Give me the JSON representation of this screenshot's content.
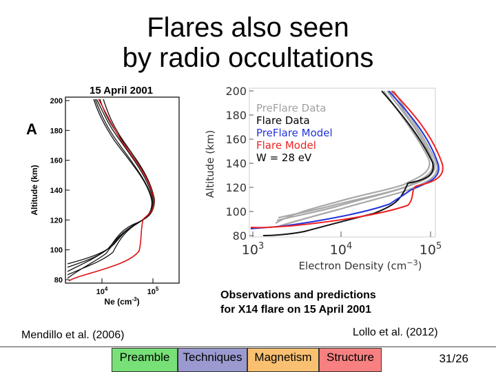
{
  "title": {
    "line1": "Flares also seen",
    "line2": "by radio occultations"
  },
  "figure_left": {
    "date_label": "15 April 2001",
    "panel_letter": "A",
    "ylabel": "Altitude (km)",
    "xlabel": "Ne (cm",
    "xlabel_sup": "-3",
    "xlabel_close": ")",
    "yticks": [
      "200",
      "180",
      "160",
      "140",
      "120",
      "100",
      "80"
    ],
    "xticks": [
      {
        "base": "10",
        "exp": "4"
      },
      {
        "base": "10",
        "exp": "5"
      }
    ]
  },
  "figure_right": {
    "ylabel": "Altitude (km)",
    "xlabel": "Electron Density (cm",
    "xlabel_sup": "−3",
    "xlabel_close": ")",
    "yticks": [
      "200",
      "180",
      "160",
      "140",
      "120",
      "100",
      "80"
    ],
    "xticks": [
      {
        "base": "10",
        "exp": "3"
      },
      {
        "base": "10",
        "exp": "4"
      },
      {
        "base": "10",
        "exp": "5"
      }
    ],
    "legend": [
      {
        "label": "PreFlare Data",
        "color": "#a0a0a0"
      },
      {
        "label": "Flare Data",
        "color": "#000000"
      },
      {
        "label": "PreFlare Model",
        "color": "#2233dd"
      },
      {
        "label": "Flare Model",
        "color": "#ee2222"
      },
      {
        "label": "W = 28 eV",
        "color": "#000000"
      }
    ]
  },
  "caption": {
    "line1": "Observations and predictions",
    "line2": "for X14 flare on 15 April 2001"
  },
  "refs": {
    "left": "Mendillo et al. (2006)",
    "right": "Lollo et al. (2012)"
  },
  "nav": [
    {
      "label": "Preamble",
      "color": "#77e077"
    },
    {
      "label": "Techniques",
      "color": "#9a9ad0"
    },
    {
      "label": "Magnetism",
      "color": "#f8c070"
    },
    {
      "label": "Structure",
      "color": "#f88080"
    }
  ],
  "page_number": "31/26"
}
